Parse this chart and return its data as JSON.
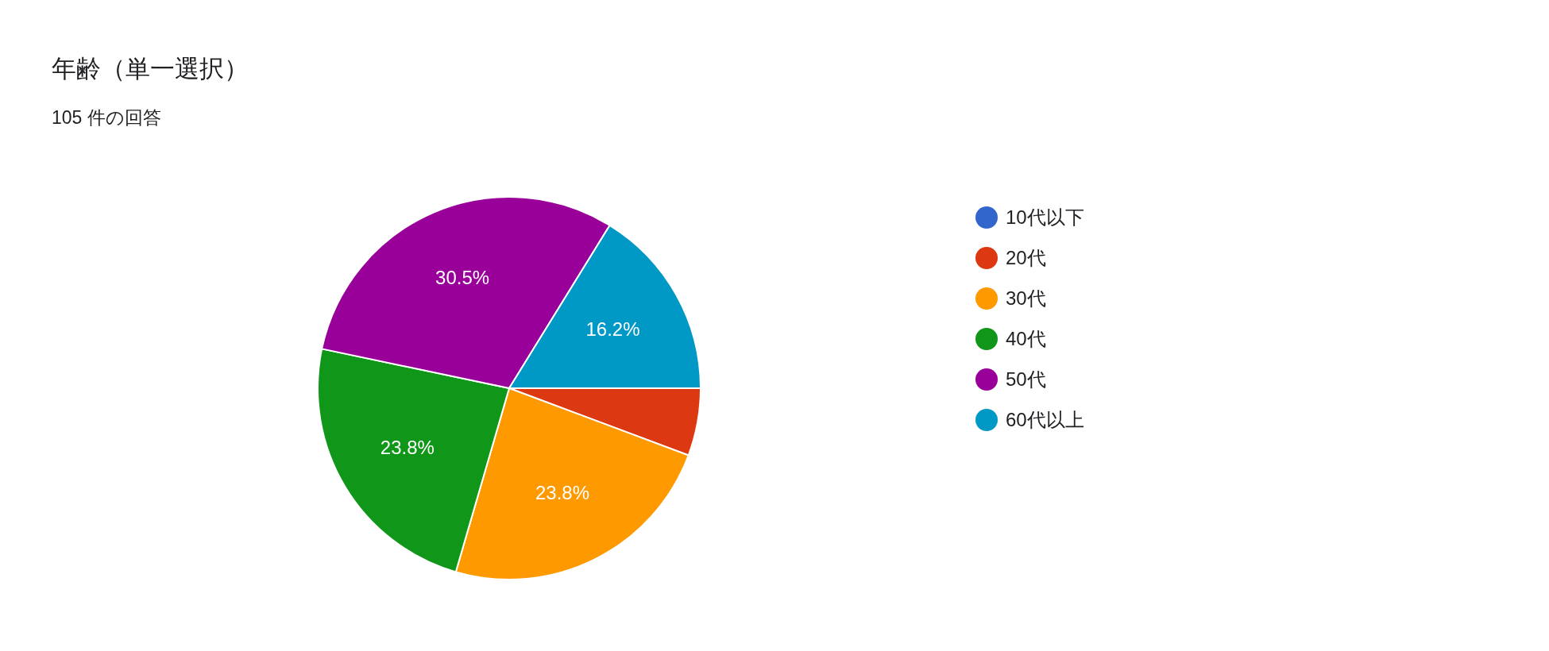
{
  "chart_data": {
    "type": "pie",
    "title": "年齢（単一選択）",
    "subtitle": "105 件の回答",
    "categories": [
      "10代以下",
      "20代",
      "30代",
      "40代",
      "50代",
      "60代以上"
    ],
    "values": [
      0,
      5.7,
      23.8,
      23.8,
      30.5,
      16.2
    ],
    "colors": [
      "#3366cc",
      "#dc3912",
      "#ff9900",
      "#109618",
      "#990099",
      "#0099c6"
    ],
    "value_labels": [
      null,
      null,
      "23.8%",
      "23.8%",
      "30.5%",
      "16.2%"
    ],
    "legend": "right"
  }
}
